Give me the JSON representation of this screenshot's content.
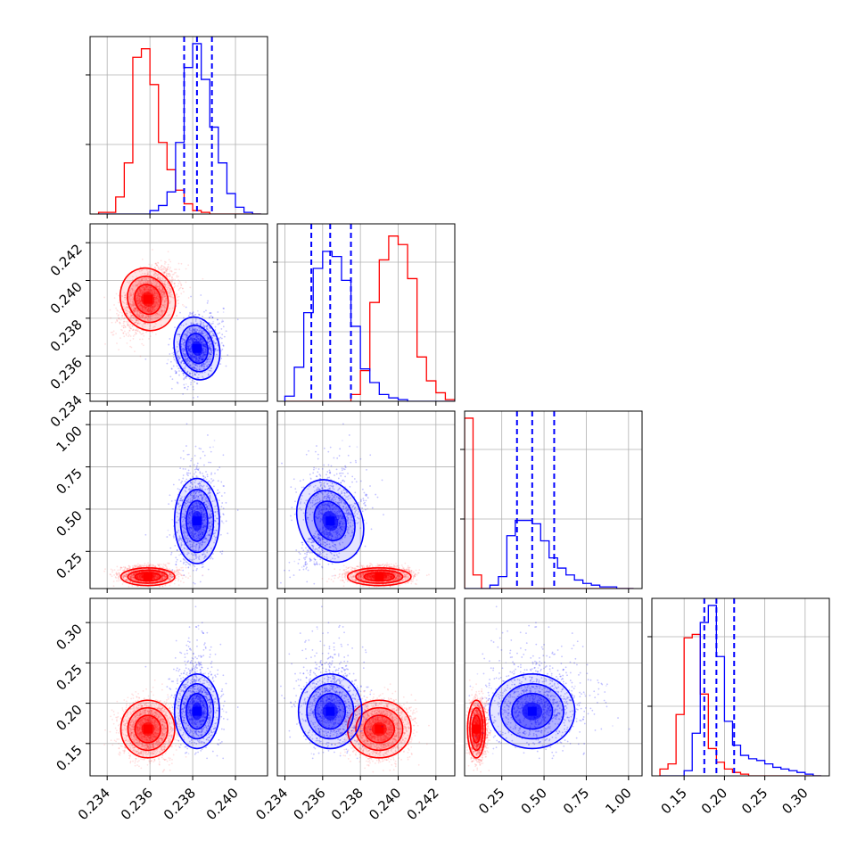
{
  "chart_data": {
    "type": "corner",
    "grid": true,
    "colors": {
      "reference": "#ff0000",
      "posterior": "#0000ff"
    },
    "parameters": [
      {
        "index": 0,
        "range": [
          0.2332,
          0.2415
        ],
        "ticks": [
          "0.234",
          "0.236",
          "0.238",
          "0.240"
        ]
      },
      {
        "index": 1,
        "range": [
          0.2336,
          0.243
        ],
        "ticks": [
          "0.234",
          "0.236",
          "0.238",
          "0.240",
          "0.242"
        ]
      },
      {
        "index": 2,
        "range": [
          0.03,
          1.08
        ],
        "ticks": [
          "0.25",
          "0.50",
          "0.75",
          "1.00"
        ]
      },
      {
        "index": 3,
        "range": [
          0.11,
          0.33
        ],
        "ticks": [
          "0.15",
          "0.20",
          "0.25",
          "0.30"
        ]
      }
    ],
    "series": [
      {
        "color": "#ff0000",
        "mean": [
          0.2359,
          0.239,
          0.1,
          0.168
        ],
        "sd": [
          0.0006,
          0.0008,
          0.025,
          0.017
        ],
        "corr01": 0.5,
        "corr02": 0.0,
        "corr03": 0.0,
        "corr12": 0.0,
        "corr13": 0.0,
        "corr23": 0.0
      },
      {
        "color": "#0000ff",
        "mean": [
          0.2382,
          0.2364,
          0.43,
          0.19
        ],
        "sd": [
          0.0005,
          0.0008,
          0.12,
          0.022
        ],
        "corr01": 0.3,
        "corr02": 0.0,
        "corr03": 0.0,
        "corr12": 0.55,
        "corr13": 0.0,
        "corr23": 0.0
      }
    ],
    "quantiles_blue": {
      "p0": [
        0.2376,
        0.2382,
        0.2389
      ],
      "p1": [
        0.2354,
        0.2364,
        0.2375
      ],
      "p2": [
        0.34,
        0.43,
        0.56
      ],
      "p3": [
        0.175,
        0.19,
        0.212
      ]
    },
    "histograms": [
      {
        "param": 0,
        "edges": [
          0.2336,
          0.2344,
          0.2348,
          0.2352,
          0.2356,
          0.236,
          0.2364,
          0.2368,
          0.2372,
          0.2376,
          0.238,
          0.2384,
          0.2388,
          0.2392,
          0.2396,
          0.24,
          0.2404,
          0.2408,
          0.2412
        ],
        "red": [
          0.01,
          0.1,
          0.3,
          0.92,
          0.97,
          0.76,
          0.42,
          0.26,
          0.14,
          0.06,
          0.02,
          0.01,
          0.0,
          0.0,
          0.0,
          0.0,
          0.0,
          0.0
        ],
        "blue": [
          0.0,
          0.0,
          0.0,
          0.0,
          0.0,
          0.02,
          0.05,
          0.13,
          0.42,
          0.86,
          1.0,
          0.79,
          0.51,
          0.3,
          0.12,
          0.04,
          0.01,
          0.0
        ]
      },
      {
        "param": 1,
        "edges": [
          0.234,
          0.2345,
          0.235,
          0.2355,
          0.236,
          0.2365,
          0.237,
          0.2375,
          0.238,
          0.2385,
          0.239,
          0.2395,
          0.24,
          0.2405,
          0.241,
          0.2415,
          0.242,
          0.2425,
          0.243
        ],
        "red": [
          0.0,
          0.0,
          0.0,
          0.0,
          0.0,
          0.0,
          0.0,
          0.04,
          0.18,
          0.58,
          0.83,
          0.97,
          0.92,
          0.72,
          0.26,
          0.12,
          0.05,
          0.01
        ],
        "blue": [
          0.03,
          0.2,
          0.52,
          0.78,
          0.88,
          0.85,
          0.71,
          0.44,
          0.19,
          0.11,
          0.04,
          0.02,
          0.01,
          0.0,
          0.0,
          0.0,
          0.0,
          0.0
        ]
      },
      {
        "param": 2,
        "edges": [
          0.03,
          0.08,
          0.13,
          0.18,
          0.23,
          0.28,
          0.33,
          0.38,
          0.43,
          0.48,
          0.53,
          0.58,
          0.63,
          0.68,
          0.73,
          0.78,
          0.83,
          0.88,
          0.93,
          0.98,
          1.03
        ],
        "red": [
          1.0,
          0.08,
          0.0,
          0.0,
          0.0,
          0.0,
          0.0,
          0.0,
          0.0,
          0.0,
          0.0,
          0.0,
          0.0,
          0.0,
          0.0,
          0.0,
          0.0,
          0.0,
          0.0,
          0.0
        ],
        "blue": [
          0.0,
          0.0,
          0.0,
          0.02,
          0.07,
          0.31,
          0.4,
          0.4,
          0.38,
          0.28,
          0.18,
          0.12,
          0.08,
          0.05,
          0.03,
          0.02,
          0.01,
          0.01,
          0.0,
          0.0
        ]
      },
      {
        "param": 3,
        "edges": [
          0.12,
          0.13,
          0.14,
          0.15,
          0.16,
          0.17,
          0.18,
          0.19,
          0.2,
          0.21,
          0.22,
          0.23,
          0.24,
          0.25,
          0.26,
          0.27,
          0.28,
          0.29,
          0.3,
          0.31,
          0.32
        ],
        "red": [
          0.04,
          0.07,
          0.36,
          0.81,
          0.83,
          0.48,
          0.16,
          0.08,
          0.04,
          0.02,
          0.01,
          0.0,
          0.0,
          0.0,
          0.0,
          0.0,
          0.0,
          0.0,
          0.0,
          0.0
        ],
        "blue": [
          0.0,
          0.0,
          0.0,
          0.03,
          0.25,
          0.9,
          1.0,
          0.7,
          0.32,
          0.18,
          0.12,
          0.1,
          0.09,
          0.07,
          0.05,
          0.04,
          0.03,
          0.02,
          0.01,
          0.0
        ]
      }
    ]
  }
}
